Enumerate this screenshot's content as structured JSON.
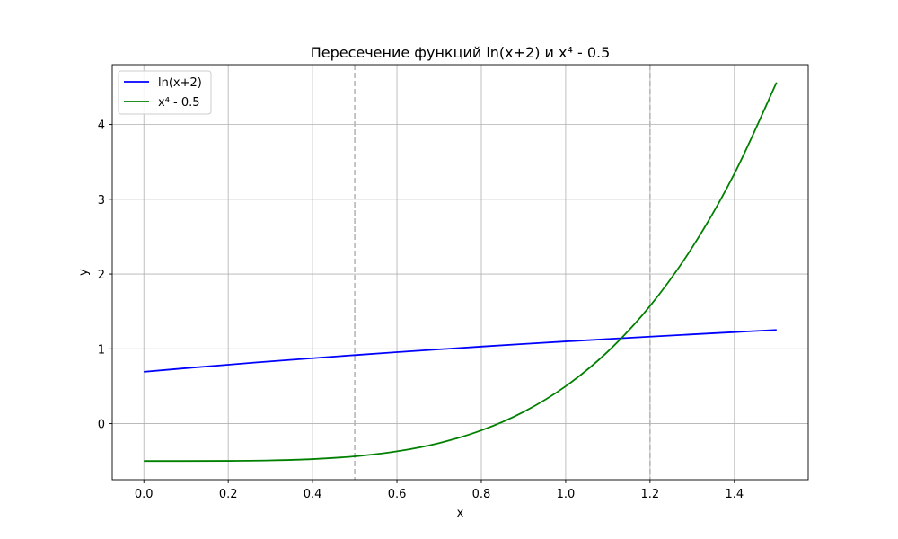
{
  "chart_data": {
    "type": "line",
    "title": "Пересечение функций ln(x+2) и x⁴ - 0.5",
    "xlabel": "x",
    "ylabel": "y",
    "xlim": [
      -0.075,
      1.575
    ],
    "ylim": [
      -0.75,
      4.8
    ],
    "xticks": [
      0.0,
      0.2,
      0.4,
      0.6,
      0.8,
      1.0,
      1.2,
      1.4
    ],
    "xtick_labels": [
      "0.0",
      "0.2",
      "0.4",
      "0.6",
      "0.8",
      "1.0",
      "1.2",
      "1.4"
    ],
    "yticks": [
      0,
      1,
      2,
      3,
      4
    ],
    "ytick_labels": [
      "0",
      "1",
      "2",
      "3",
      "4"
    ],
    "grid": true,
    "legend_position": "top-left",
    "vertical_lines": [
      {
        "x": 0.5,
        "style": "dashed",
        "color": "#b3b3b3"
      },
      {
        "x": 1.2,
        "style": "dashed",
        "color": "#b3b3b3"
      }
    ],
    "series": [
      {
        "name": "ln(x+2)",
        "color": "#0000ff",
        "x": [
          0.0,
          0.1,
          0.2,
          0.3,
          0.4,
          0.5,
          0.6,
          0.7,
          0.8,
          0.9,
          1.0,
          1.1,
          1.2,
          1.3,
          1.4,
          1.5
        ],
        "y": [
          0.693,
          0.742,
          0.788,
          0.833,
          0.875,
          0.916,
          0.956,
          0.993,
          1.03,
          1.065,
          1.099,
          1.131,
          1.163,
          1.194,
          1.224,
          1.253
        ]
      },
      {
        "name": "x⁴ - 0.5",
        "color": "#008000",
        "x": [
          0.0,
          0.1,
          0.2,
          0.3,
          0.4,
          0.5,
          0.6,
          0.7,
          0.8,
          0.9,
          1.0,
          1.1,
          1.2,
          1.3,
          1.4,
          1.5
        ],
        "y": [
          -0.5,
          -0.4999,
          -0.4984,
          -0.4919,
          -0.4744,
          -0.4375,
          -0.3704,
          -0.2599,
          -0.0904,
          0.1561,
          0.5,
          0.9641,
          1.5736,
          2.3561,
          3.3416,
          4.5625
        ]
      }
    ]
  }
}
